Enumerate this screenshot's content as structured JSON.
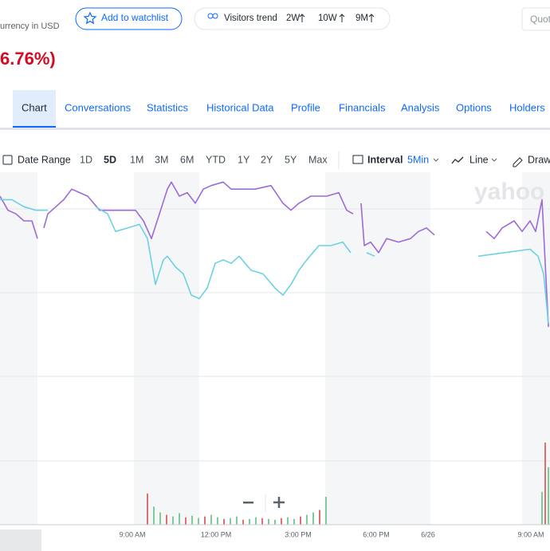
{
  "header": {
    "currency": "urrency in USD",
    "watchlist": "Add to watchlist",
    "visitors": "Visitors trend",
    "trends": [
      "2W",
      "10W",
      "9M"
    ],
    "search": "Quot",
    "change": "6.76%)"
  },
  "tabs": [
    "Chart",
    "Conversations",
    "Statistics",
    "Historical Data",
    "Profile",
    "Financials",
    "Analysis",
    "Options",
    "Holders"
  ],
  "toolbar": {
    "date_range": "Date Range",
    "ranges": [
      "1D",
      "5D",
      "1M",
      "3M",
      "6M",
      "YTD",
      "1Y",
      "2Y",
      "5Y",
      "Max"
    ],
    "interval": "Interval",
    "interval_value": "5Min",
    "chart_type": "Line",
    "draw": "Draw"
  },
  "watermark": "yahoo",
  "chart": {
    "type": "line",
    "xlim": [
      0,
      690
    ],
    "ylim": [
      0,
      100
    ],
    "xlabels": [
      "9:00 AM",
      "12:00 PM",
      "3:00 PM",
      "6:00 PM",
      "6/26",
      "9:00 AM"
    ],
    "series": [
      {
        "color": "#9b6bd6",
        "x": [
          0,
          10,
          20,
          30,
          40,
          47,
          null,
          55,
          60,
          70,
          80,
          90,
          100,
          110,
          125,
          140,
          155,
          170,
          180,
          190,
          200,
          210,
          215,
          225,
          235,
          245,
          255,
          265,
          280,
          290,
          300,
          320,
          340,
          355,
          365,
          375,
          390,
          410,
          425,
          435,
          443,
          null,
          453,
          457,
          465,
          475,
          485,
          500,
          515,
          525,
          535,
          545,
          null,
          610,
          620,
          630,
          645,
          655,
          665,
          672,
          680,
          688
        ],
        "values": [
          93,
          89,
          88,
          86,
          86,
          81,
          null,
          84,
          88,
          90,
          92,
          95,
          94,
          93,
          89,
          89,
          89,
          89,
          86,
          81,
          88,
          95,
          97,
          93,
          94,
          91,
          95,
          96,
          97,
          95,
          95,
          95,
          96,
          91,
          89,
          91,
          93,
          93,
          94,
          89,
          88,
          null,
          91,
          79,
          80,
          77,
          81,
          80,
          81,
          83,
          84,
          82,
          null,
          83,
          81,
          84,
          86,
          83,
          86,
          83,
          92,
          56
        ]
      },
      {
        "color": "#6fd0e3",
        "x": [
          0,
          15,
          30,
          45,
          60,
          null,
          120,
          135,
          145,
          160,
          175,
          185,
          195,
          205,
          210,
          220,
          230,
          240,
          250,
          260,
          270,
          280,
          290,
          300,
          315,
          330,
          345,
          355,
          365,
          375,
          385,
          400,
          415,
          430,
          440,
          null,
          460,
          470,
          null,
          600,
          665,
          675,
          682,
          688
        ],
        "values": [
          92,
          92,
          90,
          89,
          89,
          null,
          90,
          88,
          83,
          84,
          85,
          81,
          68,
          75,
          76,
          73,
          71,
          65,
          64,
          67,
          74,
          75,
          74,
          76,
          72,
          71,
          67,
          65,
          68,
          72,
          75,
          79,
          79,
          80,
          77,
          null,
          77,
          76,
          null,
          76,
          78,
          76,
          71,
          57
        ]
      }
    ],
    "volume": {
      "color": "#e07070",
      "ylim": [
        0,
        100
      ],
      "x": [
        185,
        193,
        201,
        209,
        217,
        225,
        233,
        241,
        249,
        257,
        265,
        273,
        281,
        289,
        297,
        305,
        313,
        321,
        329,
        337,
        345,
        353,
        361,
        369,
        377,
        385,
        393,
        401,
        409,
        680,
        684,
        688
      ],
      "values": [
        38,
        22,
        15,
        12,
        10,
        14,
        9,
        11,
        8,
        10,
        12,
        9,
        7,
        8,
        10,
        6,
        7,
        9,
        8,
        7,
        6,
        8,
        9,
        7,
        10,
        12,
        15,
        18,
        34,
        40,
        100,
        70
      ]
    }
  }
}
